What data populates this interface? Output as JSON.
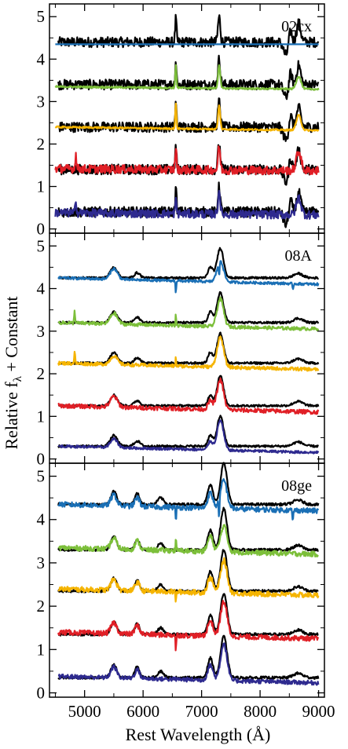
{
  "chart_data": {
    "type": "line",
    "layout": "three vertically stacked panels sharing the x axis",
    "xlabel": "Rest Wavelength (Å)",
    "ylabel": "Relative f",
    "ylabel_subscript": "λ",
    "ylabel_suffix": " + Constant",
    "xlim": [
      4400,
      9100
    ],
    "xticks": [
      5000,
      6000,
      7000,
      8000,
      9000
    ],
    "xtick_labels": [
      "5000",
      "6000",
      "7000",
      "8000",
      "9000"
    ],
    "series_colors": [
      "#000000",
      "#1a6fb5",
      "#7cbf3a",
      "#f5b400",
      "#e01f26",
      "#2e2a8f"
    ],
    "panels": [
      {
        "label": "02cx",
        "ylim": [
          -0.1,
          5.3
        ],
        "yticks": [
          0,
          1,
          2,
          3,
          4,
          5
        ],
        "ytick_labels": [
          "0",
          "1",
          "2",
          "3",
          "4",
          "5"
        ],
        "observed": {
          "color": "#000000",
          "offsets": [
            4.4,
            3.4,
            2.4,
            1.4,
            0.4
          ],
          "noise": 0.12,
          "features": [
            {
              "wave": 6560,
              "amp": 0.55,
              "sigma": 12
            },
            {
              "wave": 7300,
              "amp": 0.6,
              "sigma": 20
            },
            {
              "wave": 8520,
              "amp": 0.3,
              "sigma": 25
            },
            {
              "wave": 8660,
              "amp": 0.45,
              "sigma": 35
            },
            {
              "wave": 8440,
              "amp": -0.3,
              "sigma": 40
            }
          ]
        },
        "models": [
          {
            "color": "#1a6fb5",
            "offset": 4.35,
            "slope": 0.0,
            "noise": 0.0,
            "range": [
              4500,
              9000
            ],
            "features": []
          },
          {
            "color": "#7cbf3a",
            "offset": 3.35,
            "slope": -0.06,
            "noise": 0.02,
            "range": [
              4500,
              9000
            ],
            "features": [
              {
                "wave": 6560,
                "amp": 0.55,
                "sigma": 10
              },
              {
                "wave": 7300,
                "amp": 0.55,
                "sigma": 18
              },
              {
                "wave": 8660,
                "amp": 0.3,
                "sigma": 40
              }
            ]
          },
          {
            "color": "#f5b400",
            "offset": 2.4,
            "slope": -0.08,
            "noise": 0.02,
            "range": [
              4500,
              9000
            ],
            "features": [
              {
                "wave": 6560,
                "amp": 0.6,
                "sigma": 10
              },
              {
                "wave": 7300,
                "amp": 0.55,
                "sigma": 18
              },
              {
                "wave": 8660,
                "amp": 0.35,
                "sigma": 40
              }
            ]
          },
          {
            "color": "#e01f26",
            "offset": 1.42,
            "slope": -0.05,
            "noise": 0.1,
            "range": [
              4500,
              9000
            ],
            "features": [
              {
                "wave": 4850,
                "amp": 0.35,
                "sigma": 10
              },
              {
                "wave": 6560,
                "amp": 0.5,
                "sigma": 12
              },
              {
                "wave": 7300,
                "amp": 0.55,
                "sigma": 18
              },
              {
                "wave": 8660,
                "amp": 0.45,
                "sigma": 40
              }
            ]
          },
          {
            "color": "#2e2a8f",
            "offset": 0.38,
            "slope": -0.05,
            "noise": 0.1,
            "range": [
              4500,
              9000
            ],
            "features": [
              {
                "wave": 4850,
                "amp": 0.35,
                "sigma": 10
              },
              {
                "wave": 6560,
                "amp": 0.3,
                "sigma": 12
              },
              {
                "wave": 7300,
                "amp": 0.55,
                "sigma": 18
              },
              {
                "wave": 8660,
                "amp": 0.4,
                "sigma": 40
              }
            ]
          }
        ]
      },
      {
        "label": "08A",
        "ylim": [
          -0.1,
          5.3
        ],
        "yticks": [
          0,
          1,
          2,
          3,
          4,
          5
        ],
        "ytick_labels": [
          "0",
          "1",
          "2",
          "3",
          "4",
          "5"
        ],
        "observed": {
          "color": "#000000",
          "offsets": [
            4.25,
            3.2,
            2.25,
            1.25,
            0.3
          ],
          "noise": 0.025,
          "features": [
            {
              "wave": 5500,
              "amp": 0.25,
              "sigma": 60
            },
            {
              "wave": 5900,
              "amp": 0.12,
              "sigma": 50
            },
            {
              "wave": 7150,
              "amp": 0.25,
              "sigma": 40
            },
            {
              "wave": 7320,
              "amp": 0.7,
              "sigma": 55
            },
            {
              "wave": 8650,
              "amp": 0.1,
              "sigma": 80
            }
          ]
        },
        "models": [
          {
            "color": "#1a6fb5",
            "offset": 4.25,
            "slope": -0.15,
            "noise": 0.03,
            "range": [
              4550,
              9000
            ],
            "features": [
              {
                "wave": 5500,
                "amp": 0.25,
                "sigma": 60
              },
              {
                "wave": 7320,
                "amp": 0.5,
                "sigma": 55
              },
              {
                "wave": 6560,
                "amp": -0.3,
                "sigma": 6
              },
              {
                "wave": 7300,
                "amp": -0.35,
                "sigma": 8
              },
              {
                "wave": 8560,
                "amp": -0.15,
                "sigma": 8
              }
            ]
          },
          {
            "color": "#7cbf3a",
            "offset": 3.2,
            "slope": -0.15,
            "noise": 0.04,
            "range": [
              4550,
              9000
            ],
            "features": [
              {
                "wave": 4830,
                "amp": 0.3,
                "sigma": 8
              },
              {
                "wave": 5500,
                "amp": 0.25,
                "sigma": 60
              },
              {
                "wave": 6560,
                "amp": 0.3,
                "sigma": 6
              },
              {
                "wave": 7320,
                "amp": 0.65,
                "sigma": 55
              }
            ]
          },
          {
            "color": "#f5b400",
            "offset": 2.25,
            "slope": -0.15,
            "noise": 0.04,
            "range": [
              4550,
              9000
            ],
            "features": [
              {
                "wave": 4830,
                "amp": 0.3,
                "sigma": 8
              },
              {
                "wave": 5500,
                "amp": 0.2,
                "sigma": 60
              },
              {
                "wave": 6560,
                "amp": 0.2,
                "sigma": 6
              },
              {
                "wave": 7320,
                "amp": 0.7,
                "sigma": 55
              }
            ]
          },
          {
            "color": "#e01f26",
            "offset": 1.25,
            "slope": -0.15,
            "noise": 0.05,
            "range": [
              4550,
              9000
            ],
            "features": [
              {
                "wave": 5500,
                "amp": 0.25,
                "sigma": 60
              },
              {
                "wave": 7150,
                "amp": 0.2,
                "sigma": 40
              },
              {
                "wave": 7320,
                "amp": 0.7,
                "sigma": 55
              }
            ]
          },
          {
            "color": "#2e2a8f",
            "offset": 0.3,
            "slope": -0.15,
            "noise": 0.03,
            "range": [
              4550,
              9000
            ],
            "features": [
              {
                "wave": 5500,
                "amp": 0.2,
                "sigma": 60
              },
              {
                "wave": 7150,
                "amp": 0.2,
                "sigma": 40
              },
              {
                "wave": 7320,
                "amp": 0.7,
                "sigma": 55
              }
            ]
          }
        ]
      },
      {
        "label": "08ge",
        "ylim": [
          -0.1,
          5.3
        ],
        "yticks": [
          0,
          1,
          2,
          3,
          4,
          5
        ],
        "ytick_labels": [
          "0",
          "1",
          "2",
          "3",
          "4",
          "5"
        ],
        "observed": {
          "color": "#000000",
          "offsets": [
            4.35,
            3.3,
            2.35,
            1.35,
            0.35
          ],
          "noise": 0.03,
          "features": [
            {
              "wave": 5500,
              "amp": 0.3,
              "sigma": 50
            },
            {
              "wave": 5900,
              "amp": 0.25,
              "sigma": 40
            },
            {
              "wave": 6300,
              "amp": 0.15,
              "sigma": 50
            },
            {
              "wave": 7150,
              "amp": 0.45,
              "sigma": 45
            },
            {
              "wave": 7380,
              "amp": 0.95,
              "sigma": 55
            },
            {
              "wave": 8650,
              "amp": 0.1,
              "sigma": 80
            }
          ]
        },
        "models": [
          {
            "color": "#1a6fb5",
            "offset": 4.35,
            "slope": -0.15,
            "noise": 0.06,
            "range": [
              4550,
              9000
            ],
            "features": [
              {
                "wave": 5500,
                "amp": 0.25,
                "sigma": 50
              },
              {
                "wave": 5900,
                "amp": 0.2,
                "sigma": 40
              },
              {
                "wave": 7150,
                "amp": 0.35,
                "sigma": 45
              },
              {
                "wave": 7380,
                "amp": 0.65,
                "sigma": 55
              },
              {
                "wave": 6560,
                "amp": -0.35,
                "sigma": 6
              },
              {
                "wave": 7300,
                "amp": -0.4,
                "sigma": 8
              },
              {
                "wave": 8560,
                "amp": -0.25,
                "sigma": 8
              }
            ]
          },
          {
            "color": "#7cbf3a",
            "offset": 3.35,
            "slope": -0.15,
            "noise": 0.06,
            "range": [
              4550,
              9000
            ],
            "features": [
              {
                "wave": 5500,
                "amp": 0.25,
                "sigma": 50
              },
              {
                "wave": 5900,
                "amp": 0.2,
                "sigma": 40
              },
              {
                "wave": 6560,
                "amp": 0.3,
                "sigma": 6
              },
              {
                "wave": 7150,
                "amp": 0.35,
                "sigma": 45
              },
              {
                "wave": 7380,
                "amp": 0.6,
                "sigma": 55
              }
            ]
          },
          {
            "color": "#f5b400",
            "offset": 2.4,
            "slope": -0.15,
            "noise": 0.06,
            "range": [
              4550,
              9000
            ],
            "features": [
              {
                "wave": 5500,
                "amp": 0.25,
                "sigma": 50
              },
              {
                "wave": 5900,
                "amp": 0.2,
                "sigma": 40
              },
              {
                "wave": 6560,
                "amp": -0.3,
                "sigma": 6
              },
              {
                "wave": 7150,
                "amp": 0.35,
                "sigma": 45
              },
              {
                "wave": 7380,
                "amp": 0.75,
                "sigma": 55
              }
            ]
          },
          {
            "color": "#e01f26",
            "offset": 1.4,
            "slope": -0.15,
            "noise": 0.06,
            "range": [
              4550,
              9000
            ],
            "features": [
              {
                "wave": 5500,
                "amp": 0.25,
                "sigma": 50
              },
              {
                "wave": 5900,
                "amp": 0.2,
                "sigma": 40
              },
              {
                "wave": 6560,
                "amp": -0.4,
                "sigma": 6
              },
              {
                "wave": 7150,
                "amp": 0.35,
                "sigma": 45
              },
              {
                "wave": 7380,
                "amp": 0.8,
                "sigma": 55
              }
            ]
          },
          {
            "color": "#2e2a8f",
            "offset": 0.38,
            "slope": -0.15,
            "noise": 0.05,
            "range": [
              4550,
              9000
            ],
            "features": [
              {
                "wave": 5500,
                "amp": 0.25,
                "sigma": 50
              },
              {
                "wave": 5900,
                "amp": 0.2,
                "sigma": 40
              },
              {
                "wave": 7150,
                "amp": 0.35,
                "sigma": 45
              },
              {
                "wave": 7380,
                "amp": 0.85,
                "sigma": 55
              }
            ]
          }
        ]
      }
    ]
  }
}
